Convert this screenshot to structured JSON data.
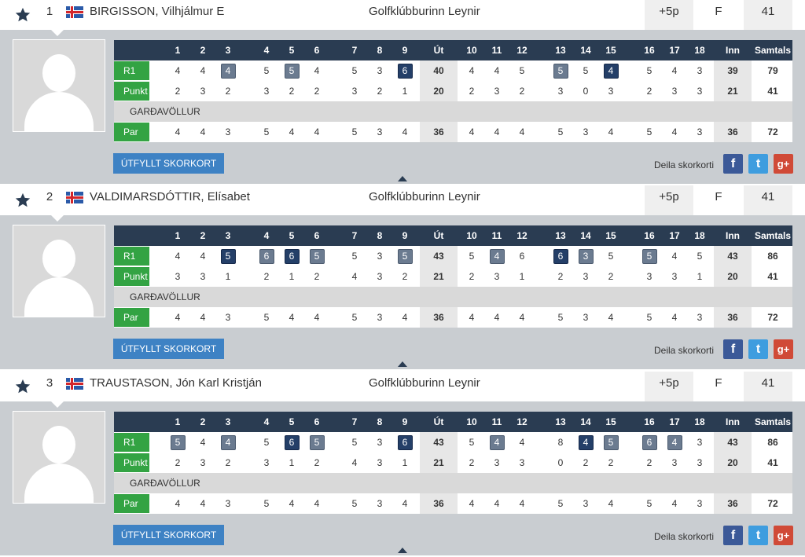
{
  "course_label": "GARÐAVÖLLUR",
  "button_label": "ÚTFYLLT SKORKORT",
  "share_label": "Deila skorkorti",
  "header_cols": [
    "1",
    "2",
    "3",
    "4",
    "5",
    "6",
    "7",
    "8",
    "9",
    "Út",
    "10",
    "11",
    "12",
    "13",
    "14",
    "15",
    "16",
    "17",
    "18",
    "Inn",
    "Samtals"
  ],
  "row_labels": {
    "r1": "R1",
    "punkt": "Punkt",
    "par": "Par"
  },
  "social": {
    "facebook": "f",
    "twitter": "t",
    "google": "g+"
  },
  "colors": {
    "header_bg": "#2a3c52",
    "label_green": "#33a343",
    "button_blue": "#3e82c4",
    "bogey_box": "#6b7b90",
    "double_box": "#243f68"
  },
  "players": [
    {
      "rank": "1",
      "name": "BIRGISSON, Vilhjálmur E",
      "club": "Golfklúbburinn Leynir",
      "handicap": "+5p",
      "thru": "F",
      "points": "41",
      "r1": [
        "4",
        "4",
        "4",
        "5",
        "5",
        "4",
        "5",
        "3",
        "6",
        "40",
        "4",
        "4",
        "5",
        "5",
        "5",
        "4",
        "5",
        "4",
        "3",
        "39",
        "79"
      ],
      "r1_marks": [
        "",
        "",
        "b",
        "",
        "b",
        "",
        "",
        "",
        "e",
        "",
        "",
        "",
        "b",
        "",
        "e",
        "",
        "",
        "",
        ""
      ],
      "punkt": [
        "2",
        "3",
        "2",
        "3",
        "2",
        "2",
        "3",
        "2",
        "1",
        "20",
        "2",
        "3",
        "2",
        "3",
        "0",
        "3",
        "2",
        "3",
        "3",
        "21",
        "41"
      ],
      "par": [
        "4",
        "4",
        "3",
        "5",
        "4",
        "4",
        "5",
        "3",
        "4",
        "36",
        "4",
        "4",
        "4",
        "5",
        "3",
        "4",
        "5",
        "4",
        "3",
        "36",
        "72"
      ]
    },
    {
      "rank": "2",
      "name": "VALDIMARSDÓTTIR, Elísabet",
      "club": "Golfklúbburinn Leynir",
      "handicap": "+5p",
      "thru": "F",
      "points": "41",
      "r1": [
        "4",
        "4",
        "5",
        "6",
        "6",
        "5",
        "5",
        "3",
        "5",
        "43",
        "5",
        "4",
        "6",
        "6",
        "3",
        "5",
        "5",
        "4",
        "5",
        "43",
        "86"
      ],
      "r1_marks": [
        "",
        "",
        "e",
        "b",
        "e",
        "b",
        "",
        "",
        "b",
        "",
        "b",
        "",
        "e",
        "b",
        "",
        "b",
        "",
        "",
        "e"
      ],
      "punkt": [
        "3",
        "3",
        "1",
        "2",
        "1",
        "2",
        "4",
        "3",
        "2",
        "21",
        "2",
        "3",
        "1",
        "2",
        "3",
        "2",
        "3",
        "3",
        "1",
        "20",
        "41"
      ],
      "par": [
        "4",
        "4",
        "3",
        "5",
        "4",
        "4",
        "5",
        "3",
        "4",
        "36",
        "4",
        "4",
        "4",
        "5",
        "3",
        "4",
        "5",
        "4",
        "3",
        "36",
        "72"
      ]
    },
    {
      "rank": "3",
      "name": "TRAUSTASON, Jón Karl Kristján",
      "club": "Golfklúbburinn Leynir",
      "handicap": "+5p",
      "thru": "F",
      "points": "41",
      "r1": [
        "5",
        "4",
        "4",
        "5",
        "6",
        "5",
        "5",
        "3",
        "6",
        "43",
        "5",
        "4",
        "4",
        "8",
        "4",
        "5",
        "6",
        "4",
        "3",
        "43",
        "86"
      ],
      "r1_marks": [
        "b",
        "",
        "b",
        "",
        "e",
        "b",
        "",
        "",
        "e",
        "",
        "b",
        "",
        "",
        "e",
        "b",
        "b",
        "b",
        "",
        ""
      ],
      "punkt": [
        "2",
        "3",
        "2",
        "3",
        "1",
        "2",
        "4",
        "3",
        "1",
        "21",
        "2",
        "3",
        "3",
        "0",
        "2",
        "2",
        "2",
        "3",
        "3",
        "20",
        "41"
      ],
      "par": [
        "4",
        "4",
        "3",
        "5",
        "4",
        "4",
        "5",
        "3",
        "4",
        "36",
        "4",
        "4",
        "4",
        "5",
        "3",
        "4",
        "5",
        "4",
        "3",
        "36",
        "72"
      ]
    }
  ]
}
